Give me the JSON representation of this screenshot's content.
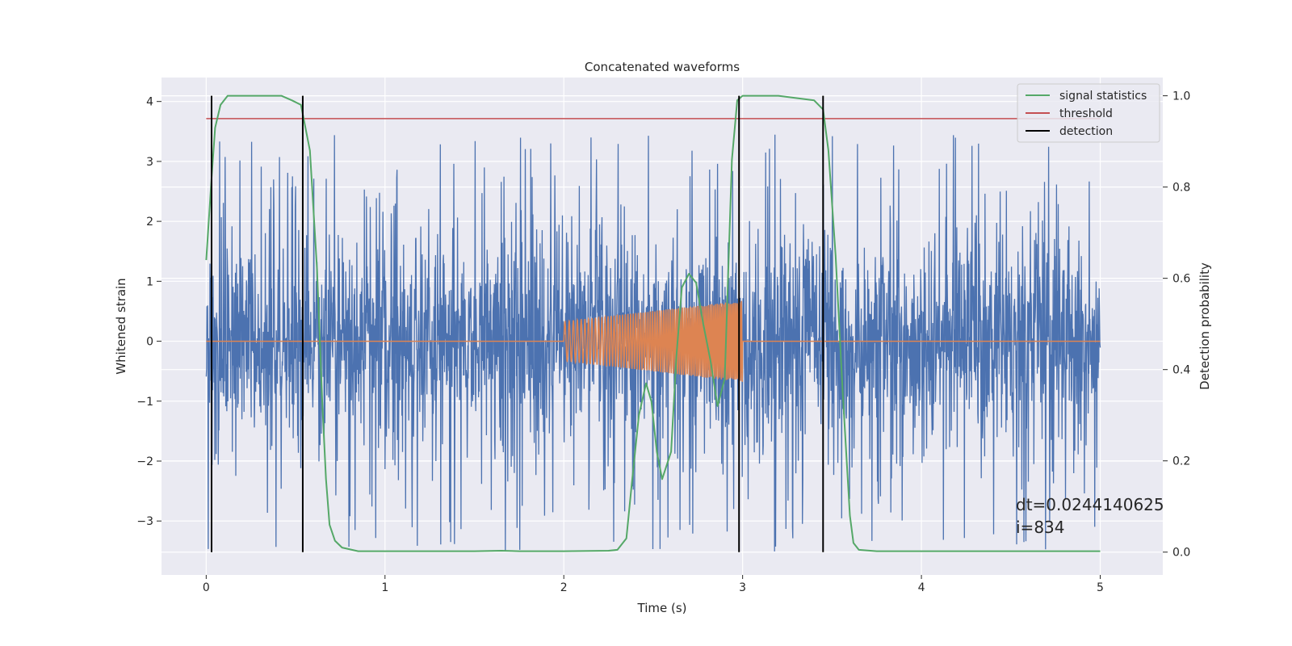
{
  "chart_data": {
    "type": "line",
    "title": "Concatenated waveforms",
    "xlabel": "Time (s)",
    "ylabel": "Whitened strain",
    "y2label": "Detection probability",
    "xlim": [
      -0.25,
      5.35
    ],
    "ylim": [
      -3.9,
      4.4
    ],
    "y2lim": [
      -0.05,
      1.04
    ],
    "xticks": [
      0,
      1,
      2,
      3,
      4,
      5
    ],
    "yticks": [
      -3,
      -2,
      -1,
      0,
      1,
      2,
      3,
      4
    ],
    "y2ticks": [
      0.0,
      0.2,
      0.4,
      0.6,
      0.8,
      1.0
    ],
    "legend_position": "top-right",
    "legend": [
      {
        "label": "signal statistics",
        "color": "#55a868"
      },
      {
        "label": "threshold",
        "color": "#c44e52"
      },
      {
        "label": "detection",
        "color": "#000000"
      }
    ],
    "noise": {
      "x_range": [
        0,
        5
      ],
      "amplitude_typical": 1.0,
      "amplitude_peak": 3.3,
      "color": "#4c72b0"
    },
    "injected_signal": {
      "x_range": [
        2.0,
        3.0
      ],
      "amplitude_start": 0.33,
      "amplitude_end": 0.68,
      "color": "#dd8452"
    },
    "signal_statistics": {
      "x": [
        0,
        0.03,
        0.05,
        0.08,
        0.12,
        0.2,
        0.3,
        0.42,
        0.48,
        0.53,
        0.58,
        0.62,
        0.65,
        0.67,
        0.69,
        0.72,
        0.76,
        0.85,
        1.0,
        1.5,
        1.65,
        1.75,
        2.0,
        2.25,
        2.3,
        2.35,
        2.38,
        2.42,
        2.46,
        2.49,
        2.52,
        2.55,
        2.6,
        2.63,
        2.66,
        2.7,
        2.74,
        2.78,
        2.82,
        2.86,
        2.9,
        2.94,
        2.97,
        3.0,
        3.05,
        3.2,
        3.4,
        3.45,
        3.48,
        3.52,
        3.56,
        3.6,
        3.62,
        3.65,
        3.75,
        4.5,
        5.0
      ],
      "y": [
        0.64,
        0.82,
        0.93,
        0.98,
        1.0,
        1.0,
        1.0,
        1.0,
        0.99,
        0.98,
        0.88,
        0.62,
        0.32,
        0.16,
        0.06,
        0.025,
        0.01,
        0.002,
        0.002,
        0.002,
        0.003,
        0.002,
        0.002,
        0.003,
        0.005,
        0.03,
        0.15,
        0.3,
        0.37,
        0.33,
        0.22,
        0.16,
        0.22,
        0.43,
        0.58,
        0.61,
        0.59,
        0.5,
        0.42,
        0.32,
        0.38,
        0.86,
        0.99,
        1.0,
        1.0,
        1.0,
        0.99,
        0.97,
        0.88,
        0.65,
        0.35,
        0.08,
        0.02,
        0.005,
        0.002,
        0.002,
        0.002
      ]
    },
    "threshold": {
      "x": [
        0,
        5
      ],
      "y": 0.95
    },
    "detections": [
      0.03,
      0.54,
      2.98,
      3.45
    ],
    "annotation": "dt=0.0244140625\n i=834"
  }
}
